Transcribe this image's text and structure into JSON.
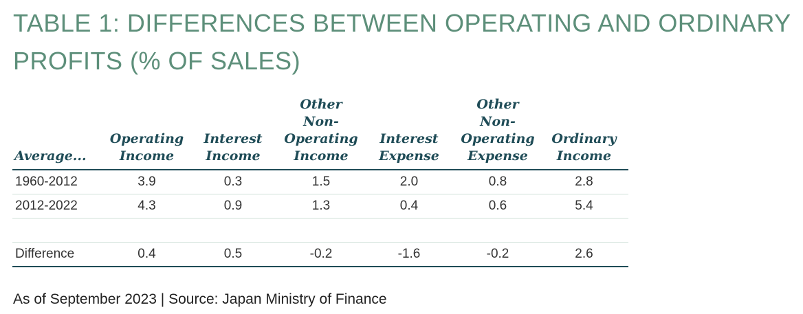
{
  "title": "TABLE 1: DIFFERENCES BETWEEN OPERATING AND ORDINARY PROFITS (% OF SALES)",
  "table": {
    "headers": [
      "Average...",
      "Operating\nIncome",
      "Interest\nIncome",
      "Other Non-\nOperating\nIncome",
      "Interest\nExpense",
      "Other Non-\nOperating\nExpense",
      "Ordinary\nIncome"
    ],
    "rows": [
      [
        "1960-2012",
        "3.9",
        "0.3",
        "1.5",
        "2.0",
        "0.8",
        "2.8"
      ],
      [
        "2012-2022",
        "4.3",
        "0.9",
        "1.3",
        "0.4",
        "0.6",
        "5.4"
      ],
      [
        "",
        "",
        "",
        "",
        "",
        "",
        ""
      ],
      [
        "Difference",
        "0.4",
        "0.5",
        "-0.2",
        "-1.6",
        "-0.2",
        "2.6"
      ]
    ]
  },
  "footer": "As of September 2023 | Source: Japan Ministry of Finance",
  "colors": {
    "title": "#5d8f7a",
    "header_text": "#1f4c57",
    "rule": "#1f4c57",
    "row_divider": "#cfe0d8"
  }
}
